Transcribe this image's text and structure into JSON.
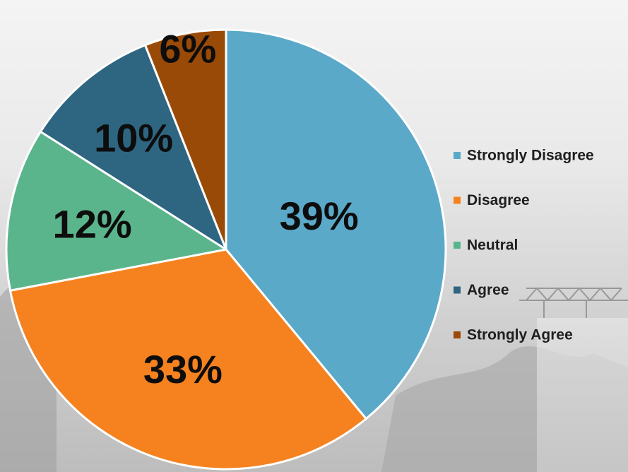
{
  "chart_data": {
    "type": "pie",
    "categories": [
      "Strongly Disagree",
      "Disagree",
      "Neutral",
      "Agree",
      "Strongly Agree"
    ],
    "values": [
      39,
      33,
      12,
      10,
      6
    ],
    "data_labels": [
      "39%",
      "33%",
      "12%",
      "10%",
      "6%"
    ],
    "colors": [
      "#5ba9c8",
      "#f5821f",
      "#5bb58c",
      "#2e6682",
      "#9a4a07"
    ],
    "start_angle_deg": 0,
    "direction": "clockwise",
    "legend_position": "right",
    "unit": "percent"
  },
  "background": {
    "description_colors": [
      "#b9b9b9",
      "#ffffff"
    ]
  }
}
